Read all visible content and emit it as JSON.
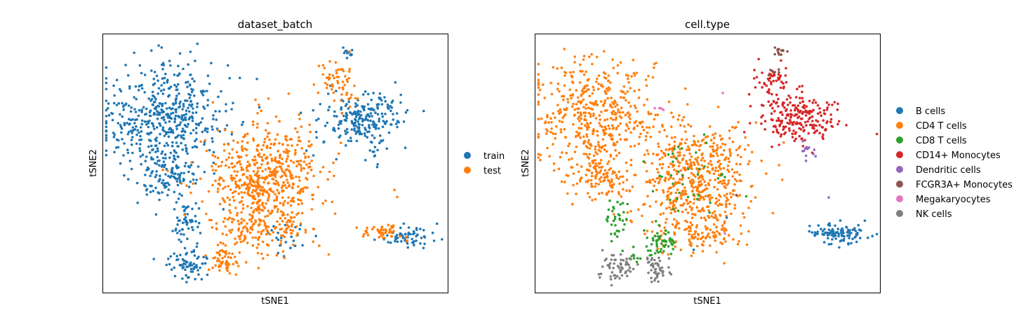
{
  "chart_data": [
    {
      "type": "scatter",
      "title": "dataset_batch",
      "xlabel": "tSNE1",
      "ylabel": "tSNE2",
      "xlim": [
        0,
        100
      ],
      "ylim": [
        0,
        100
      ],
      "grid": false,
      "legend_position": "right",
      "legend": [
        {
          "name": "train",
          "color": "#1f77b4"
        },
        {
          "name": "test",
          "color": "#ff7f0e"
        }
      ],
      "clusters": [
        {
          "series": "train",
          "cx": 18,
          "cy": 68,
          "sx": 9,
          "sy": 11,
          "n": 500
        },
        {
          "series": "train",
          "cx": 19,
          "cy": 44,
          "sx": 4,
          "sy": 5,
          "n": 110
        },
        {
          "series": "train",
          "cx": 24,
          "cy": 27,
          "sx": 2,
          "sy": 4,
          "n": 50
        },
        {
          "series": "train",
          "cx": 25,
          "cy": 11,
          "sx": 3,
          "sy": 3,
          "n": 70
        },
        {
          "series": "train",
          "cx": 75,
          "cy": 67,
          "sx": 6,
          "sy": 5,
          "n": 230
        },
        {
          "series": "train",
          "cx": 71,
          "cy": 93,
          "sx": 1,
          "sy": 1,
          "n": 12
        },
        {
          "series": "train",
          "cx": 79,
          "cy": 55,
          "sx": 1,
          "sy": 3,
          "n": 12
        },
        {
          "series": "train",
          "cx": 89,
          "cy": 22,
          "sx": 4,
          "sy": 2,
          "n": 60
        },
        {
          "series": "train",
          "cx": 55,
          "cy": 21,
          "sx": 4,
          "sy": 3,
          "n": 25
        },
        {
          "series": "train",
          "cx": 35,
          "cy": 71,
          "sx": 1,
          "sy": 1,
          "n": 4
        },
        {
          "series": "test",
          "cx": 47,
          "cy": 44,
          "sx": 8,
          "sy": 11,
          "n": 620
        },
        {
          "series": "test",
          "cx": 43,
          "cy": 23,
          "sx": 6,
          "sy": 5,
          "n": 90
        },
        {
          "series": "test",
          "cx": 35,
          "cy": 12,
          "sx": 2,
          "sy": 3,
          "n": 50
        },
        {
          "series": "test",
          "cx": 68,
          "cy": 80,
          "sx": 3,
          "sy": 5,
          "n": 60
        },
        {
          "series": "test",
          "cx": 82,
          "cy": 24,
          "sx": 3,
          "sy": 2,
          "n": 50
        },
        {
          "series": "test",
          "cx": 54,
          "cy": 26,
          "sx": 2,
          "sy": 3,
          "n": 15
        },
        {
          "series": "test",
          "cx": 54,
          "cy": 77,
          "sx": 0.3,
          "sy": 0.3,
          "n": 1
        },
        {
          "series": "test",
          "cx": 85,
          "cy": 37,
          "sx": 0.3,
          "sy": 0.3,
          "n": 1
        }
      ]
    },
    {
      "type": "scatter",
      "title": "cell.type",
      "xlabel": "tSNE1",
      "ylabel": "tSNE2",
      "xlim": [
        0,
        100
      ],
      "ylim": [
        0,
        100
      ],
      "grid": false,
      "legend_position": "right",
      "legend": [
        {
          "name": "B cells",
          "color": "#1f77b4"
        },
        {
          "name": "CD4 T cells",
          "color": "#ff7f0e"
        },
        {
          "name": "CD8 T cells",
          "color": "#2ca02c"
        },
        {
          "name": "CD14+ Monocytes",
          "color": "#d62728"
        },
        {
          "name": "Dendritic cells",
          "color": "#9467bd"
        },
        {
          "name": "FCGR3A+ Monocytes",
          "color": "#8c564b"
        },
        {
          "name": "Megakaryocytes",
          "color": "#e377c2"
        },
        {
          "name": "NK cells",
          "color": "#7f7f7f"
        }
      ],
      "clusters": [
        {
          "series": "CD4 T cells",
          "cx": 18,
          "cy": 68,
          "sx": 9,
          "sy": 11,
          "n": 480
        },
        {
          "series": "CD4 T cells",
          "cx": 19,
          "cy": 44,
          "sx": 4,
          "sy": 5,
          "n": 100
        },
        {
          "series": "CD4 T cells",
          "cx": 47,
          "cy": 44,
          "sx": 8,
          "sy": 11,
          "n": 560
        },
        {
          "series": "CD4 T cells",
          "cx": 43,
          "cy": 23,
          "sx": 6,
          "sy": 5,
          "n": 60
        },
        {
          "series": "CD4 T cells",
          "cx": 54,
          "cy": 24,
          "sx": 2,
          "sy": 3,
          "n": 20
        },
        {
          "series": "CD8 T cells",
          "cx": 24,
          "cy": 28,
          "sx": 2,
          "sy": 4,
          "n": 35
        },
        {
          "series": "CD8 T cells",
          "cx": 37,
          "cy": 20,
          "sx": 2,
          "sy": 3,
          "n": 45
        },
        {
          "series": "CD8 T cells",
          "cx": 45,
          "cy": 45,
          "sx": 7,
          "sy": 9,
          "n": 40
        },
        {
          "series": "CD8 T cells",
          "cx": 30,
          "cy": 15,
          "sx": 3,
          "sy": 2,
          "n": 15
        },
        {
          "series": "NK cells",
          "cx": 24,
          "cy": 10,
          "sx": 2.5,
          "sy": 2.5,
          "n": 60
        },
        {
          "series": "NK cells",
          "cx": 35,
          "cy": 10,
          "sx": 1.5,
          "sy": 2.5,
          "n": 45
        },
        {
          "series": "CD14+ Monocytes",
          "cx": 76,
          "cy": 67,
          "sx": 6,
          "sy": 5,
          "n": 220
        },
        {
          "series": "CD14+ Monocytes",
          "cx": 69,
          "cy": 81,
          "sx": 3,
          "sy": 4,
          "n": 55
        },
        {
          "series": "FCGR3A+ Monocytes",
          "cx": 71,
          "cy": 93,
          "sx": 1,
          "sy": 1,
          "n": 14
        },
        {
          "series": "FCGR3A+ Monocytes",
          "cx": 69,
          "cy": 86,
          "sx": 1,
          "sy": 1,
          "n": 6
        },
        {
          "series": "Dendritic cells",
          "cx": 79,
          "cy": 54,
          "sx": 1,
          "sy": 2,
          "n": 12
        },
        {
          "series": "Megakaryocytes",
          "cx": 35,
          "cy": 71,
          "sx": 1,
          "sy": 0.5,
          "n": 5
        },
        {
          "series": "Megakaryocytes",
          "cx": 54,
          "cy": 77,
          "sx": 0.3,
          "sy": 0.3,
          "n": 1
        },
        {
          "series": "Megakaryocytes",
          "cx": 55,
          "cy": 23,
          "sx": 0.3,
          "sy": 0.3,
          "n": 1
        },
        {
          "series": "B cells",
          "cx": 88,
          "cy": 23,
          "sx": 4,
          "sy": 2,
          "n": 110
        },
        {
          "series": "B cells",
          "cx": 46,
          "cy": 17,
          "sx": 0.3,
          "sy": 0.3,
          "n": 1
        },
        {
          "series": "B cells",
          "cx": 55,
          "cy": 29,
          "sx": 0.3,
          "sy": 0.3,
          "n": 1
        },
        {
          "series": "FCGR3A+ Monocytes",
          "cx": 59,
          "cy": 38,
          "sx": 0.3,
          "sy": 0.3,
          "n": 1
        },
        {
          "series": "Dendritic cells",
          "cx": 85,
          "cy": 37,
          "sx": 0.3,
          "sy": 0.3,
          "n": 1
        }
      ]
    }
  ]
}
